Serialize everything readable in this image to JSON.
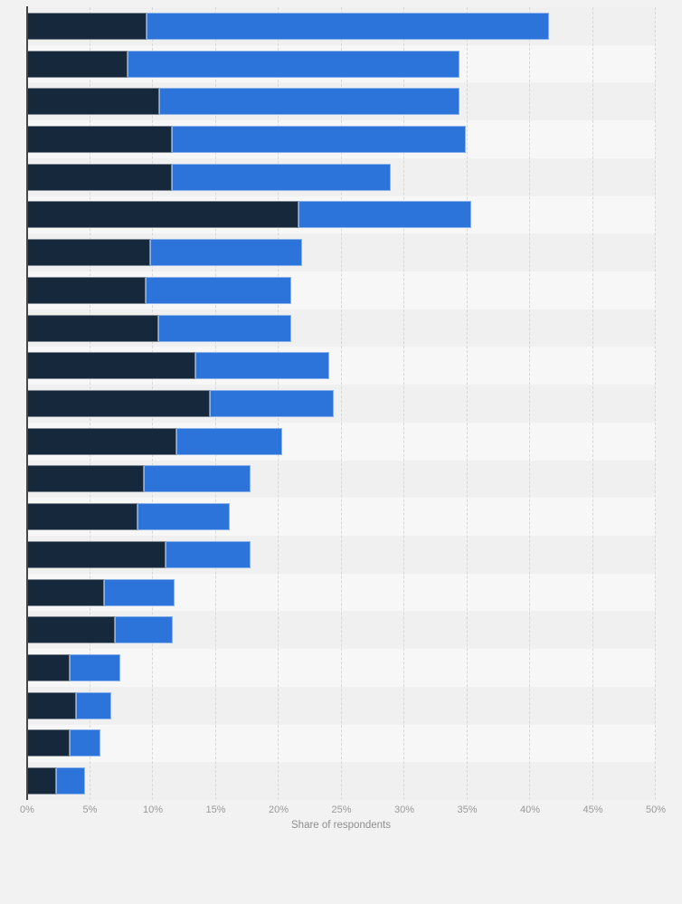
{
  "chart_data": {
    "type": "bar",
    "orientation": "horizontal",
    "stacked": true,
    "title": "",
    "xlabel": "Share of respondents",
    "ylabel": "",
    "xlim": [
      0,
      50
    ],
    "x_tick_step": 5,
    "x_ticks": [
      "0%",
      "5%",
      "10%",
      "15%",
      "20%",
      "25%",
      "30%",
      "35%",
      "40%",
      "45%",
      "50%"
    ],
    "grid": "vertical-dashed",
    "legend_position": "none",
    "category_labels_visible": false,
    "series": [
      {
        "name": "dark-navy-segment",
        "color": "#15283c",
        "values": [
          9.5,
          8.0,
          10.5,
          11.5,
          11.5,
          21.6,
          9.8,
          9.4,
          10.4,
          13.4,
          14.5,
          11.9,
          9.3,
          8.8,
          11.0,
          6.1,
          7.0,
          3.4,
          3.9,
          3.4,
          2.3
        ]
      },
      {
        "name": "blue-segment",
        "color": "#2c73da",
        "values": [
          32.0,
          26.4,
          23.9,
          23.4,
          17.4,
          13.7,
          12.1,
          11.6,
          10.6,
          10.6,
          9.9,
          8.4,
          8.5,
          7.3,
          6.8,
          5.6,
          4.6,
          4.0,
          2.8,
          2.4,
          2.3
        ]
      }
    ],
    "stack_totals": [
      41.5,
      34.4,
      34.4,
      34.9,
      28.9,
      35.3,
      21.9,
      21.0,
      21.0,
      24.0,
      24.4,
      20.3,
      17.8,
      16.1,
      17.8,
      11.7,
      11.6,
      7.4,
      6.7,
      5.8,
      4.6
    ]
  },
  "style": {
    "page_bg": "#f2f2f3",
    "band_odd": "#f0f0f1",
    "band_even": "#f7f7f8",
    "gridline": "#d8d8d8",
    "axis_line": "#474747",
    "tick_text": "#9a9a9a",
    "xlabel_text": "#8f8f8f"
  }
}
